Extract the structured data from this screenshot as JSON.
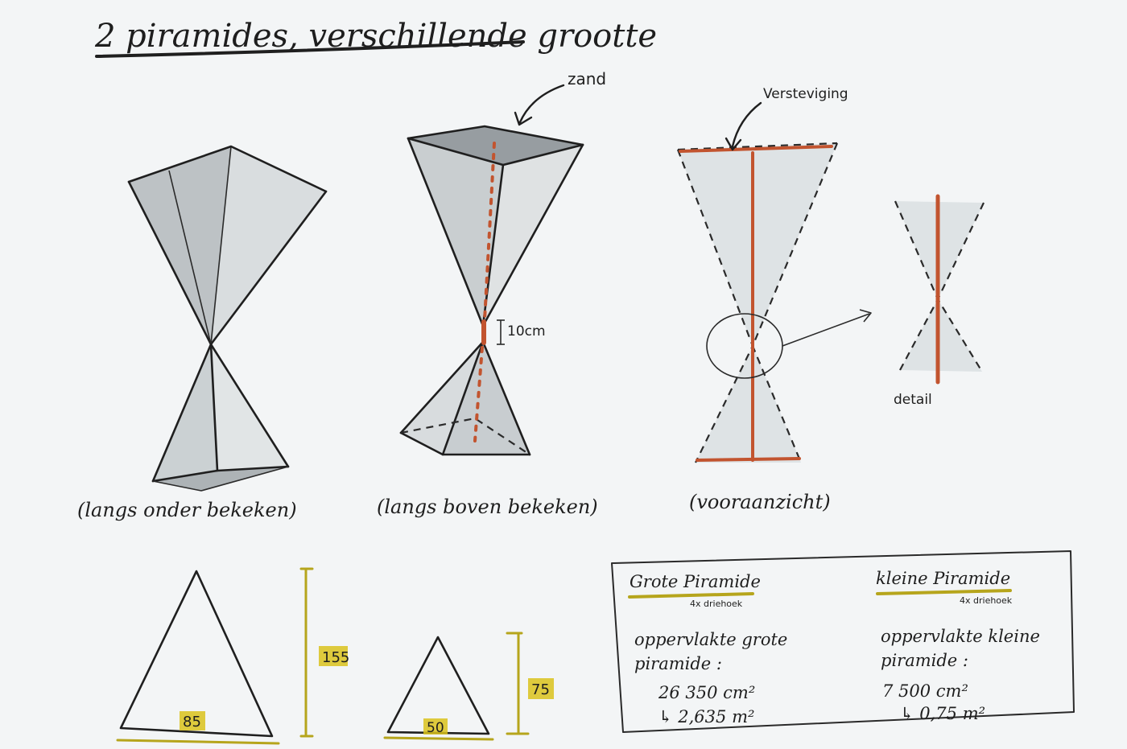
{
  "title": "2 piramides, verschillende grootte",
  "sketches": {
    "label_zand": "zand",
    "label_10cm": "10cm",
    "label_versteviging": "Versteviging",
    "label_detail": "detail",
    "caption_1": "(langs onder bekeken)",
    "caption_2": "(langs boven bekeken)",
    "caption_3": "(vooraanzicht)"
  },
  "dimensions": {
    "large_height": "155",
    "large_base": "85",
    "small_height": "75",
    "small_base": "50"
  },
  "table": {
    "left": {
      "heading": "Grote Piramide",
      "sub": "4x driehoek",
      "label_line1": "oppervlakte grote",
      "label_line2": "piramide :",
      "value1": "26 350 cm²",
      "value2": "↳ 2,635 m²"
    },
    "right": {
      "heading": "kleine Piramide",
      "sub": "4x driehoek",
      "label_line1": "oppervlakte kleine",
      "label_line2": "piramide :",
      "value1": "7 500 cm²",
      "value2": "↳ 0,75 m²"
    }
  },
  "colors": {
    "paper": "#f3f5f6",
    "ink": "#1f1f1f",
    "shade": "#9aa3a8",
    "accent_red": "#c2542f",
    "accent_mustard": "#d9c21c"
  }
}
